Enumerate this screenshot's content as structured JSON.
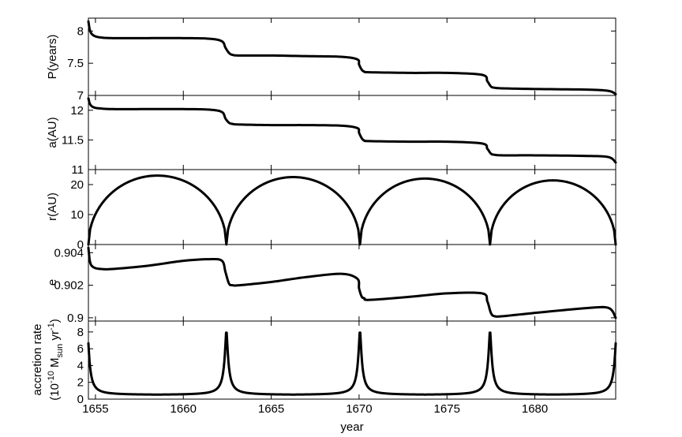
{
  "chart_data": [
    {
      "type": "line",
      "ylabel": "P(years)",
      "ylim": [
        7,
        8.2
      ],
      "yticks": [
        7,
        7.5,
        8
      ],
      "ytick_labels": [
        "7",
        "7.5",
        "8"
      ],
      "xlim": [
        1654.6,
        1684.6
      ],
      "grid": false,
      "series": [
        {
          "x": [
            1654.6,
            1654.7,
            1654.9,
            1655.3,
            1656,
            1658,
            1660,
            1661.5,
            1662.2,
            1662.4,
            1662.6,
            1662.8,
            1663.2,
            1665,
            1667,
            1669,
            1669.9,
            1670.0,
            1670.15,
            1670.3,
            1670.6,
            1673,
            1675,
            1677.0,
            1677.3,
            1677.5,
            1677.7,
            1678.2,
            1680,
            1683,
            1684.2,
            1684.6
          ],
          "y": [
            8.15,
            8.0,
            7.93,
            7.9,
            7.89,
            7.89,
            7.89,
            7.88,
            7.84,
            7.74,
            7.66,
            7.63,
            7.62,
            7.62,
            7.61,
            7.6,
            7.56,
            7.48,
            7.4,
            7.37,
            7.36,
            7.35,
            7.35,
            7.32,
            7.22,
            7.14,
            7.12,
            7.11,
            7.1,
            7.09,
            7.07,
            7.02
          ]
        }
      ]
    },
    {
      "type": "line",
      "ylabel": "a(AU)",
      "ylim": [
        11,
        12.25
      ],
      "yticks": [
        11,
        11.5,
        12
      ],
      "ytick_labels": [
        "11",
        "11.5",
        "12"
      ],
      "xlim": [
        1654.6,
        1684.6
      ],
      "grid": false,
      "series": [
        {
          "x": [
            1654.6,
            1654.7,
            1654.9,
            1655.3,
            1656,
            1658,
            1660,
            1661.5,
            1662.2,
            1662.4,
            1662.6,
            1662.8,
            1663.2,
            1665,
            1667,
            1669,
            1669.9,
            1670.0,
            1670.15,
            1670.3,
            1670.6,
            1673,
            1675,
            1677.0,
            1677.3,
            1677.5,
            1677.7,
            1678.2,
            1680,
            1683,
            1684.2,
            1684.6
          ],
          "y": [
            12.2,
            12.1,
            12.05,
            12.03,
            12.02,
            12.02,
            12.02,
            12.01,
            11.97,
            11.86,
            11.79,
            11.77,
            11.76,
            11.75,
            11.75,
            11.74,
            11.7,
            11.62,
            11.53,
            11.49,
            11.48,
            11.47,
            11.47,
            11.44,
            11.35,
            11.27,
            11.25,
            11.24,
            11.24,
            11.23,
            11.21,
            11.12
          ]
        }
      ]
    },
    {
      "type": "line",
      "ylabel": "r(AU)",
      "ylim": [
        0,
        25
      ],
      "yticks": [
        0,
        10,
        20
      ],
      "ytick_labels": [
        "0",
        "10",
        "20"
      ],
      "xlim": [
        1654.6,
        1684.6
      ],
      "grid": false,
      "series": [
        {
          "shape": "orbit-arches",
          "perihelia": [
            1654.6,
            1662.45,
            1670.05,
            1677.45,
            1684.6
          ],
          "peak_values": [
            23.0,
            22.5,
            22.0,
            21.4
          ]
        }
      ]
    },
    {
      "type": "line",
      "ylabel": "e",
      "ylim": [
        0.8998,
        0.9045
      ],
      "yticks": [
        0.9,
        0.902,
        0.904
      ],
      "ytick_labels": [
        "0.9",
        "0.902",
        "0.904"
      ],
      "xlim": [
        1654.6,
        1684.6
      ],
      "grid": false,
      "series": [
        {
          "x": [
            1654.6,
            1654.7,
            1654.9,
            1655.3,
            1656,
            1658,
            1660,
            1661.5,
            1662.2,
            1662.4,
            1662.6,
            1662.8,
            1663.2,
            1665,
            1667,
            1669,
            1669.9,
            1670.0,
            1670.15,
            1670.3,
            1670.6,
            1673,
            1675,
            1677.0,
            1677.3,
            1677.5,
            1677.7,
            1678.2,
            1680,
            1683,
            1684.2,
            1684.6
          ],
          "y": [
            0.9043,
            0.9034,
            0.9031,
            0.903,
            0.903,
            0.9032,
            0.9035,
            0.9036,
            0.9035,
            0.9028,
            0.9021,
            0.902,
            0.902,
            0.9022,
            0.9025,
            0.9027,
            0.9024,
            0.9018,
            0.9013,
            0.9012,
            0.9011,
            0.9013,
            0.9015,
            0.9015,
            0.901,
            0.9003,
            0.9001,
            0.9001,
            0.9003,
            0.9006,
            0.9006,
            0.9
          ]
        }
      ]
    },
    {
      "type": "line",
      "ylabel": "accretion rate",
      "ylabel_line2": "(10",
      "ylabel_sup": "-10",
      "ylabel_line2b": " M",
      "ylabel_sub": "sun",
      "ylabel_line2c": " yr",
      "ylabel_sup2": "-1",
      "ylabel_close": ")",
      "ylim": [
        0,
        9.3
      ],
      "yticks": [
        0,
        2,
        4,
        6,
        8
      ],
      "ytick_labels": [
        "0",
        "2",
        "4",
        "6",
        "8"
      ],
      "xlim": [
        1654.6,
        1684.6
      ],
      "xticks": [
        1655,
        1660,
        1665,
        1670,
        1675,
        1680
      ],
      "xtick_labels": [
        "1655",
        "1660",
        "1665",
        "1670",
        "1675",
        "1680"
      ],
      "xlabel": "year",
      "grid": false,
      "series": [
        {
          "shape": "periodic-spikes",
          "spike_times": [
            1654.55,
            1662.45,
            1670.05,
            1677.45,
            1684.65
          ],
          "peak_value": 8.3,
          "baseline": 0.5
        }
      ]
    }
  ]
}
